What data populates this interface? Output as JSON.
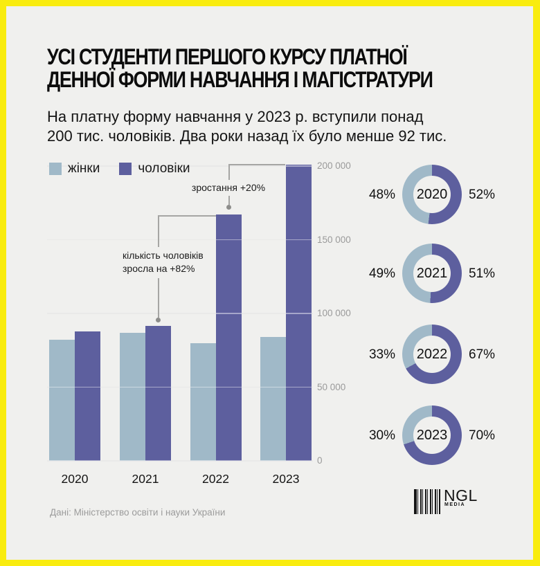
{
  "page": {
    "title_line1": "УСІ СТУДЕНТИ ПЕРШОГО КУРСУ ПЛАТНОЇ",
    "title_line2": "ДЕННОЇ ФОРМИ НАВЧАННЯ І МАГІСТРАТУРИ",
    "subtitle_line1": "На платну форму навчання у 2023 р. вступили понад",
    "subtitle_line2": "200 тис. чоловіків. Два роки назад їх було менше 92 тис."
  },
  "legend": {
    "women_label": "жінки",
    "men_label": "чоловіки"
  },
  "colors": {
    "women": "#a0b9c8",
    "men": "#5d5f9e",
    "background": "#f0f0ee",
    "border_yellow": "#f9ec0f",
    "gridline": "#d8d8d6",
    "axis_label": "#9a9a9a",
    "annotation_line": "#a5a5a3",
    "source_text": "#9b9b9b"
  },
  "chart_data": [
    {
      "type": "bar",
      "title": "Студенти першого курсу платної денної форми навчання і магістратури за роками",
      "categories": [
        "2020",
        "2021",
        "2022",
        "2023"
      ],
      "series": [
        {
          "name": "жінки",
          "values": [
            82000,
            87000,
            80000,
            84000
          ]
        },
        {
          "name": "чоловіки",
          "values": [
            88000,
            91500,
            167000,
            201000
          ]
        }
      ],
      "ylim": [
        0,
        200000
      ],
      "yticks": {
        "values": [
          0,
          50000,
          100000,
          150000,
          200000
        ],
        "labels": [
          "0",
          "50 000",
          "100 000",
          "150 000",
          "200 000"
        ]
      },
      "grid": true,
      "legend_position": "top-left",
      "annotations": [
        {
          "label_line1": "кількість чоловіків",
          "label_line2": "зросла на +82%"
        },
        {
          "label": "зростання +20%"
        }
      ]
    },
    {
      "type": "pie",
      "variant": "donut",
      "title": "Співвідношення жінок і чоловіків за роками",
      "items": [
        {
          "year": "2020",
          "women_pct": 48,
          "men_pct": 52,
          "left_label": "48%",
          "right_label": "52%"
        },
        {
          "year": "2021",
          "women_pct": 49,
          "men_pct": 51,
          "left_label": "49%",
          "right_label": "51%"
        },
        {
          "year": "2022",
          "women_pct": 33,
          "men_pct": 67,
          "left_label": "33%",
          "right_label": "67%"
        },
        {
          "year": "2023",
          "women_pct": 30,
          "men_pct": 70,
          "left_label": "30%",
          "right_label": "70%"
        }
      ]
    }
  ],
  "footer": {
    "source": "Дані: Міністерство освіти і науки України",
    "logo_text": "NGL",
    "logo_sub": "MEDIA"
  }
}
